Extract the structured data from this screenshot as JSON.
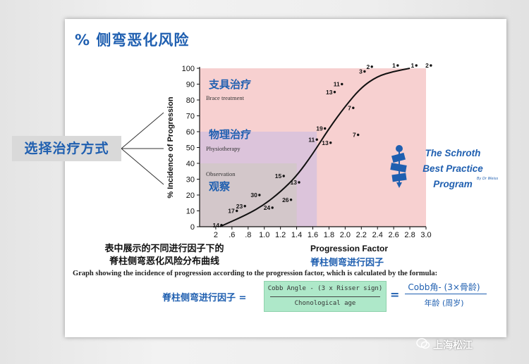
{
  "slide_title": "% 侧弯恶化风险",
  "left_label": "选择治疗方式",
  "caption_cn_line1": "表中展示的不同进行因子下的",
  "caption_cn_line2": "脊柱侧弯恶化风险分布曲线",
  "formula": {
    "description": "Graph showing the incidence of progression according to the progression factor, which is calculated by the formula:",
    "lhs": "脊柱侧弯进行因子 =",
    "eq": "=",
    "numerator": "Cobb Angle - (3 x Risser sign)",
    "denominator": "Chonological age",
    "rhs_numerator": "Cobb角- (3×骨龄)",
    "rhs_denominator": "年龄 (周岁)"
  },
  "logo": {
    "line1": "The Schroth",
    "line2": "Best Practice",
    "line3": "Program",
    "small": "By Dr Weiss"
  },
  "watermark": "上海松江",
  "colors": {
    "accent_blue": "#1f5fb0",
    "zone_brace": "#f6c8c8",
    "zone_physio": "#d8c2dc",
    "zone_observe": "#d2c8c8",
    "formula_box": "#aee8c9"
  },
  "chart_data": {
    "type": "scatter",
    "title": "",
    "xlabel": "Progression Factor",
    "xlabel_cn": "脊柱侧弯进行因子",
    "ylabel": "% Incidence of Progression",
    "xlim": [
      0.2,
      3.0
    ],
    "ylim": [
      0,
      100
    ],
    "x_ticks": [
      ".6",
      ".8",
      "1.0",
      "1.2",
      "1.4",
      "1.6",
      "1.8",
      "2.0",
      "2.2",
      "2.4",
      "2.6",
      "2.8",
      "3.0"
    ],
    "x_tick_values": [
      0.6,
      0.8,
      1.0,
      1.2,
      1.4,
      1.6,
      1.8,
      2.0,
      2.2,
      2.4,
      2.6,
      2.8,
      3.0
    ],
    "x_tick_extra": [
      {
        "label": "2",
        "value": 0.4
      }
    ],
    "y_ticks": [
      0,
      10,
      20,
      30,
      40,
      50,
      60,
      70,
      80,
      90,
      100
    ],
    "zones": [
      {
        "name": "支具治疗",
        "sub": "Brace treatment",
        "x_max": 3.0,
        "y_max": 100
      },
      {
        "name": "物理治疗",
        "sub": "Physiotherapy",
        "x_max": 1.65,
        "y_max": 60
      },
      {
        "name": "观察",
        "sub": "Observation",
        "x_max": 1.4,
        "y_max": 40
      }
    ],
    "points": [
      {
        "x": 0.47,
        "y": 1,
        "label": "14"
      },
      {
        "x": 0.66,
        "y": 10,
        "label": "17"
      },
      {
        "x": 0.76,
        "y": 13,
        "label": "23"
      },
      {
        "x": 0.94,
        "y": 20,
        "label": "30"
      },
      {
        "x": 1.1,
        "y": 12,
        "label": "24"
      },
      {
        "x": 1.33,
        "y": 17,
        "label": "26"
      },
      {
        "x": 1.24,
        "y": 32,
        "label": "15"
      },
      {
        "x": 1.43,
        "y": 28,
        "label": "13"
      },
      {
        "x": 1.65,
        "y": 55,
        "label": "11"
      },
      {
        "x": 1.75,
        "y": 62,
        "label": "19"
      },
      {
        "x": 1.82,
        "y": 53,
        "label": "13"
      },
      {
        "x": 1.87,
        "y": 85,
        "label": "13"
      },
      {
        "x": 1.96,
        "y": 90,
        "label": "11"
      },
      {
        "x": 2.1,
        "y": 75,
        "label": "7"
      },
      {
        "x": 2.16,
        "y": 58,
        "label": "7"
      },
      {
        "x": 2.24,
        "y": 98,
        "label": "3"
      },
      {
        "x": 2.33,
        "y": 101,
        "label": "2"
      },
      {
        "x": 2.65,
        "y": 102,
        "label": "1"
      },
      {
        "x": 2.88,
        "y": 102,
        "label": "1"
      },
      {
        "x": 3.06,
        "y": 102,
        "label": "2"
      }
    ],
    "curve": [
      [
        0.45,
        0
      ],
      [
        0.8,
        8
      ],
      [
        1.0,
        14
      ],
      [
        1.2,
        22
      ],
      [
        1.4,
        32
      ],
      [
        1.6,
        46
      ],
      [
        1.8,
        62
      ],
      [
        2.0,
        76
      ],
      [
        2.2,
        88
      ],
      [
        2.4,
        95
      ],
      [
        2.6,
        98
      ],
      [
        2.8,
        100
      ]
    ]
  }
}
